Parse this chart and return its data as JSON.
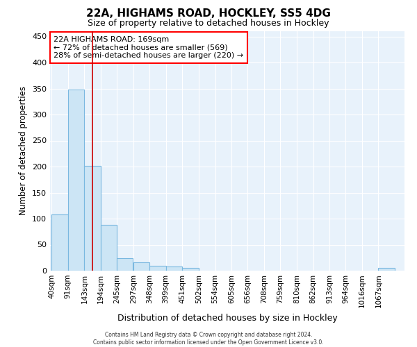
{
  "title": "22A, HIGHAMS ROAD, HOCKLEY, SS5 4DG",
  "subtitle": "Size of property relative to detached houses in Hockley",
  "xlabel": "Distribution of detached houses by size in Hockley",
  "ylabel": "Number of detached properties",
  "bar_color": "#cce5f5",
  "bar_edge_color": "#7ab8e0",
  "bg_color": "#e8f2fb",
  "bin_labels": [
    "40sqm",
    "91sqm",
    "143sqm",
    "194sqm",
    "245sqm",
    "297sqm",
    "348sqm",
    "399sqm",
    "451sqm",
    "502sqm",
    "554sqm",
    "605sqm",
    "656sqm",
    "708sqm",
    "759sqm",
    "810sqm",
    "862sqm",
    "913sqm",
    "964sqm",
    "1016sqm",
    "1067sqm"
  ],
  "bar_values": [
    108,
    348,
    202,
    88,
    24,
    16,
    9,
    8,
    5,
    0,
    0,
    0,
    0,
    0,
    0,
    0,
    0,
    0,
    0,
    0,
    5
  ],
  "red_line_x": 169,
  "annotation_text": "22A HIGHAMS ROAD: 169sqm\n← 72% of detached houses are smaller (569)\n28% of semi-detached houses are larger (220) →",
  "footer_text": "Contains HM Land Registry data © Crown copyright and database right 2024.\nContains public sector information licensed under the Open Government Licence v3.0.",
  "ylim": [
    0,
    460
  ],
  "yticks": [
    0,
    50,
    100,
    150,
    200,
    250,
    300,
    350,
    400,
    450
  ],
  "bin_width": 52
}
